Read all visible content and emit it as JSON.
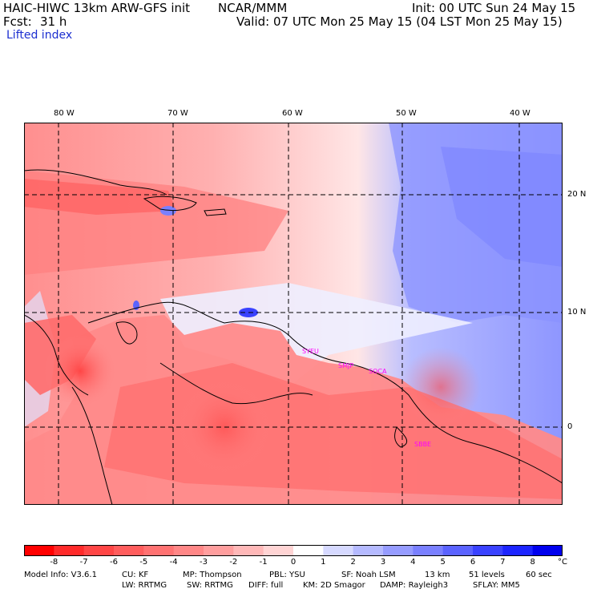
{
  "header": {
    "model_title": "HAIC-HIWC 13km ARW-GFS init",
    "org": "NCAR/MMM",
    "init": "Init: 00 UTC Sun 24 May 15",
    "fcst_label": "Fcst:",
    "fcst_value": "31 h",
    "valid": "Valid: 07 UTC Mon 25 May 15 (04 LST Mon 25 May 15)",
    "field": "Lifted index"
  },
  "map": {
    "lon_labels": [
      "80 W",
      "70 W",
      "60 W",
      "50 W",
      "40 W"
    ],
    "lat_labels": [
      "20 N",
      "10 N",
      "0"
    ],
    "stations": [
      "SYEU",
      "SMJP",
      "SOCA",
      "SBBE"
    ],
    "station_color": "#ff00ff"
  },
  "colorbar": {
    "labels": [
      "-8",
      "-7",
      "-6",
      "-5",
      "-4",
      "-3",
      "-2",
      "-1",
      "0",
      "1",
      "2",
      "3",
      "4",
      "5",
      "6",
      "7",
      "8"
    ],
    "unit": "°C",
    "colors": [
      "#ff0000",
      "#ff2a2a",
      "#ff4646",
      "#ff5d5d",
      "#ff7272",
      "#ff8787",
      "#ff9e9e",
      "#ffb8b8",
      "#ffd4d4",
      "#ffffff",
      "#d6d9ff",
      "#b5baff",
      "#969cff",
      "#7a80ff",
      "#5b63ff",
      "#3a42ff",
      "#1c24ff",
      "#0000ee"
    ]
  },
  "footer": {
    "line1": [
      "Model Info: V3.6.1",
      "CU: KF",
      "MP: Thompson",
      "PBL: YSU",
      "SF: Noah LSM",
      "13 km",
      "51 levels",
      "60 sec"
    ],
    "line2": [
      "LW: RRTMG",
      "SW: RRTMG",
      "DIFF: full",
      "KM: 2D Smagor",
      "DAMP: Rayleigh3",
      "SFLAY: MM5"
    ]
  }
}
